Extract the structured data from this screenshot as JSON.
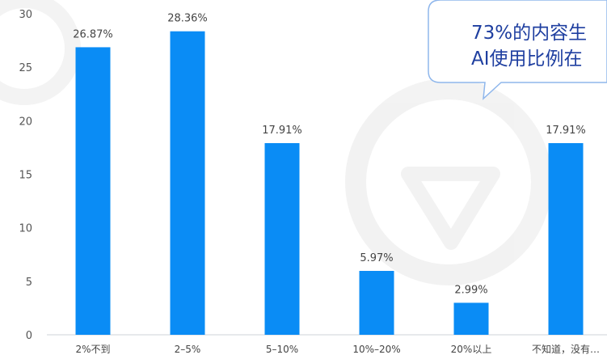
{
  "chart_data": {
    "type": "bar",
    "title": "",
    "xlabel": "",
    "ylabel": "",
    "ylim": [
      0,
      30
    ],
    "yticks": [
      0,
      5,
      10,
      15,
      20,
      25,
      30
    ],
    "categories": [
      "2%不到",
      "2–5%",
      "5–10%",
      "10%–20%",
      "20%以上",
      "不知道，没有…"
    ],
    "values": [
      26.87,
      28.36,
      17.91,
      5.97,
      2.99,
      17.91
    ],
    "data_labels": [
      "26.87%",
      "28.36%",
      "17.91%",
      "5.97%",
      "2.99%",
      "17.91%"
    ],
    "bar_color": "#0a8cf5",
    "grid": false,
    "legend": "none"
  },
  "callout": {
    "line1": "73%的内容生",
    "line2": "AI使用比例在"
  }
}
